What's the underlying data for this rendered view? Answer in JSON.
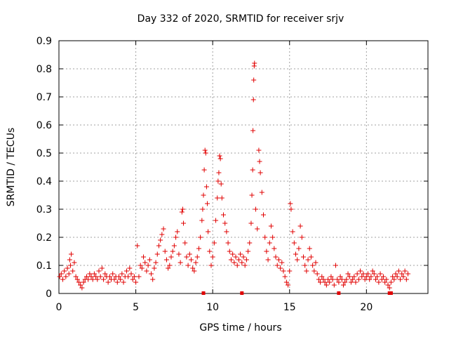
{
  "chart_data": {
    "type": "scatter",
    "title": "Day 332 of 2020, SRMTID for receiver srjv",
    "xlabel": "GPS time / hours",
    "ylabel": "SRMTID / TECUs",
    "xlim": [
      0,
      24
    ],
    "ylim": [
      0,
      0.9
    ],
    "xticks": [
      0,
      5,
      10,
      15,
      20
    ],
    "xtick_labels": [
      "0",
      "5",
      "10",
      "15",
      "20"
    ],
    "yticks": [
      0,
      0.1,
      0.2,
      0.3,
      0.4,
      0.5,
      0.6,
      0.7,
      0.8,
      0.9
    ],
    "ytick_labels": [
      "0",
      "0.1",
      "0.2",
      "0.3",
      "0.4",
      "0.5",
      "0.6",
      "0.7",
      "0.8",
      "0.9"
    ],
    "grid": true,
    "marker": "plus",
    "color": "#e00000",
    "series": [
      {
        "name": "SRMTID",
        "points": [
          [
            0.05,
            0.06
          ],
          [
            0.15,
            0.07
          ],
          [
            0.25,
            0.05
          ],
          [
            0.35,
            0.08
          ],
          [
            0.45,
            0.06
          ],
          [
            0.55,
            0.09
          ],
          [
            0.65,
            0.07
          ],
          [
            0.7,
            0.12
          ],
          [
            0.75,
            0.1
          ],
          [
            0.8,
            0.14
          ],
          [
            0.9,
            0.08
          ],
          [
            1.0,
            0.11
          ],
          [
            1.1,
            0.06
          ],
          [
            1.2,
            0.05
          ],
          [
            1.3,
            0.04
          ],
          [
            1.4,
            0.03
          ],
          [
            1.5,
            0.02
          ],
          [
            1.6,
            0.04
          ],
          [
            1.7,
            0.05
          ],
          [
            1.8,
            0.06
          ],
          [
            1.9,
            0.05
          ],
          [
            2.0,
            0.07
          ],
          [
            2.1,
            0.06
          ],
          [
            2.2,
            0.05
          ],
          [
            2.3,
            0.07
          ],
          [
            2.4,
            0.06
          ],
          [
            2.5,
            0.05
          ],
          [
            2.6,
            0.08
          ],
          [
            2.7,
            0.06
          ],
          [
            2.8,
            0.09
          ],
          [
            2.9,
            0.05
          ],
          [
            3.0,
            0.07
          ],
          [
            3.1,
            0.06
          ],
          [
            3.2,
            0.04
          ],
          [
            3.3,
            0.06
          ],
          [
            3.4,
            0.05
          ],
          [
            3.5,
            0.07
          ],
          [
            3.6,
            0.05
          ],
          [
            3.7,
            0.06
          ],
          [
            3.8,
            0.04
          ],
          [
            3.9,
            0.06
          ],
          [
            4.0,
            0.05
          ],
          [
            4.1,
            0.07
          ],
          [
            4.2,
            0.04
          ],
          [
            4.3,
            0.06
          ],
          [
            4.4,
            0.08
          ],
          [
            4.5,
            0.06
          ],
          [
            4.6,
            0.09
          ],
          [
            4.7,
            0.07
          ],
          [
            4.8,
            0.05
          ],
          [
            4.9,
            0.06
          ],
          [
            5.0,
            0.04
          ],
          [
            5.1,
            0.17
          ],
          [
            5.2,
            0.06
          ],
          [
            5.3,
            0.1
          ],
          [
            5.4,
            0.09
          ],
          [
            5.5,
            0.13
          ],
          [
            5.6,
            0.11
          ],
          [
            5.7,
            0.08
          ],
          [
            5.8,
            0.1
          ],
          [
            5.9,
            0.12
          ],
          [
            6.0,
            0.07
          ],
          [
            6.1,
            0.05
          ],
          [
            6.2,
            0.09
          ],
          [
            6.3,
            0.11
          ],
          [
            6.4,
            0.14
          ],
          [
            6.5,
            0.17
          ],
          [
            6.6,
            0.19
          ],
          [
            6.7,
            0.21
          ],
          [
            6.8,
            0.23
          ],
          [
            6.9,
            0.15
          ],
          [
            7.0,
            0.12
          ],
          [
            7.1,
            0.09
          ],
          [
            7.2,
            0.1
          ],
          [
            7.3,
            0.13
          ],
          [
            7.4,
            0.15
          ],
          [
            7.5,
            0.17
          ],
          [
            7.6,
            0.2
          ],
          [
            7.7,
            0.22
          ],
          [
            7.8,
            0.14
          ],
          [
            7.9,
            0.11
          ],
          [
            8.0,
            0.29
          ],
          [
            8.05,
            0.3
          ],
          [
            8.1,
            0.25
          ],
          [
            8.2,
            0.18
          ],
          [
            8.3,
            0.13
          ],
          [
            8.4,
            0.1
          ],
          [
            8.5,
            0.14
          ],
          [
            8.6,
            0.12
          ],
          [
            8.7,
            0.09
          ],
          [
            8.8,
            0.08
          ],
          [
            8.9,
            0.11
          ],
          [
            9.0,
            0.13
          ],
          [
            9.1,
            0.16
          ],
          [
            9.2,
            0.2
          ],
          [
            9.3,
            0.26
          ],
          [
            9.35,
            0.3
          ],
          [
            9.4,
            0.35
          ],
          [
            9.45,
            0.44
          ],
          [
            9.5,
            0.51
          ],
          [
            9.55,
            0.5
          ],
          [
            9.6,
            0.38
          ],
          [
            9.65,
            0.32
          ],
          [
            9.7,
            0.22
          ],
          [
            9.8,
            0.15
          ],
          [
            9.9,
            0.1
          ],
          [
            10.0,
            0.13
          ],
          [
            10.1,
            0.18
          ],
          [
            10.2,
            0.26
          ],
          [
            10.3,
            0.34
          ],
          [
            10.35,
            0.4
          ],
          [
            10.4,
            0.43
          ],
          [
            10.45,
            0.49
          ],
          [
            10.5,
            0.48
          ],
          [
            10.55,
            0.39
          ],
          [
            10.6,
            0.34
          ],
          [
            10.7,
            0.28
          ],
          [
            10.8,
            0.25
          ],
          [
            10.9,
            0.22
          ],
          [
            11.0,
            0.18
          ],
          [
            11.1,
            0.15
          ],
          [
            11.2,
            0.12
          ],
          [
            11.3,
            0.14
          ],
          [
            11.4,
            0.11
          ],
          [
            11.5,
            0.13
          ],
          [
            11.6,
            0.1
          ],
          [
            11.7,
            0.12
          ],
          [
            11.8,
            0.14
          ],
          [
            11.9,
            0.11
          ],
          [
            12.0,
            0.13
          ],
          [
            12.1,
            0.1
          ],
          [
            12.2,
            0.12
          ],
          [
            12.3,
            0.15
          ],
          [
            12.4,
            0.18
          ],
          [
            12.5,
            0.25
          ],
          [
            12.55,
            0.35
          ],
          [
            12.6,
            0.44
          ],
          [
            12.62,
            0.58
          ],
          [
            12.65,
            0.69
          ],
          [
            12.67,
            0.76
          ],
          [
            12.7,
            0.81
          ],
          [
            12.72,
            0.82
          ],
          [
            12.8,
            0.3
          ],
          [
            12.9,
            0.23
          ],
          [
            13.0,
            0.51
          ],
          [
            13.05,
            0.47
          ],
          [
            13.1,
            0.43
          ],
          [
            13.2,
            0.36
          ],
          [
            13.3,
            0.28
          ],
          [
            13.4,
            0.2
          ],
          [
            13.5,
            0.15
          ],
          [
            13.6,
            0.12
          ],
          [
            13.7,
            0.18
          ],
          [
            13.8,
            0.24
          ],
          [
            13.9,
            0.2
          ],
          [
            14.0,
            0.16
          ],
          [
            14.1,
            0.13
          ],
          [
            14.2,
            0.1
          ],
          [
            14.3,
            0.12
          ],
          [
            14.4,
            0.09
          ],
          [
            14.5,
            0.11
          ],
          [
            14.6,
            0.08
          ],
          [
            14.7,
            0.06
          ],
          [
            14.8,
            0.04
          ],
          [
            14.9,
            0.03
          ],
          [
            15.0,
            0.08
          ],
          [
            15.05,
            0.32
          ],
          [
            15.1,
            0.3
          ],
          [
            15.2,
            0.22
          ],
          [
            15.3,
            0.18
          ],
          [
            15.4,
            0.14
          ],
          [
            15.5,
            0.12
          ],
          [
            15.6,
            0.16
          ],
          [
            15.7,
            0.24
          ],
          [
            15.8,
            0.2
          ],
          [
            15.9,
            0.13
          ],
          [
            16.0,
            0.1
          ],
          [
            16.1,
            0.08
          ],
          [
            16.2,
            0.12
          ],
          [
            16.3,
            0.16
          ],
          [
            16.4,
            0.13
          ],
          [
            16.5,
            0.1
          ],
          [
            16.6,
            0.08
          ],
          [
            16.7,
            0.11
          ],
          [
            16.8,
            0.07
          ],
          [
            16.9,
            0.05
          ],
          [
            17.0,
            0.04
          ],
          [
            17.1,
            0.06
          ],
          [
            17.2,
            0.05
          ],
          [
            17.3,
            0.04
          ],
          [
            17.4,
            0.03
          ],
          [
            17.5,
            0.05
          ],
          [
            17.6,
            0.04
          ],
          [
            17.7,
            0.06
          ],
          [
            17.8,
            0.05
          ],
          [
            17.9,
            0.03
          ],
          [
            18.0,
            0.1
          ],
          [
            18.1,
            0.05
          ],
          [
            18.2,
            0.04
          ],
          [
            18.3,
            0.06
          ],
          [
            18.4,
            0.05
          ],
          [
            18.5,
            0.03
          ],
          [
            18.6,
            0.04
          ],
          [
            18.7,
            0.05
          ],
          [
            18.8,
            0.07
          ],
          [
            18.9,
            0.06
          ],
          [
            19.0,
            0.04
          ],
          [
            19.1,
            0.05
          ],
          [
            19.2,
            0.06
          ],
          [
            19.3,
            0.04
          ],
          [
            19.4,
            0.07
          ],
          [
            19.5,
            0.05
          ],
          [
            19.6,
            0.08
          ],
          [
            19.7,
            0.06
          ],
          [
            19.8,
            0.07
          ],
          [
            19.9,
            0.05
          ],
          [
            20.0,
            0.06
          ],
          [
            20.1,
            0.07
          ],
          [
            20.2,
            0.05
          ],
          [
            20.3,
            0.06
          ],
          [
            20.4,
            0.08
          ],
          [
            20.5,
            0.07
          ],
          [
            20.6,
            0.05
          ],
          [
            20.7,
            0.06
          ],
          [
            20.8,
            0.04
          ],
          [
            20.9,
            0.07
          ],
          [
            21.0,
            0.05
          ],
          [
            21.1,
            0.06
          ],
          [
            21.2,
            0.04
          ],
          [
            21.3,
            0.05
          ],
          [
            21.4,
            0.03
          ],
          [
            21.5,
            0.02
          ],
          [
            21.6,
            0.04
          ],
          [
            21.7,
            0.06
          ],
          [
            21.8,
            0.05
          ],
          [
            21.9,
            0.07
          ],
          [
            22.0,
            0.06
          ],
          [
            22.1,
            0.08
          ],
          [
            22.2,
            0.05
          ],
          [
            22.3,
            0.07
          ],
          [
            22.4,
            0.06
          ],
          [
            22.5,
            0.08
          ],
          [
            22.6,
            0.05
          ],
          [
            22.7,
            0.07
          ]
        ]
      }
    ],
    "baseline_markers": [
      9.4,
      11.9,
      18.2,
      21.5,
      21.6
    ]
  }
}
